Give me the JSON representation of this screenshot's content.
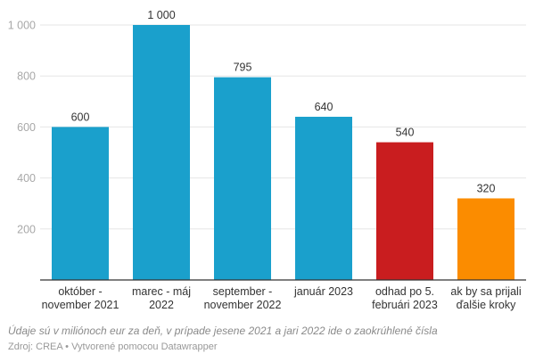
{
  "chart_data": {
    "type": "bar",
    "categories": [
      [
        "október -",
        "november 2021"
      ],
      [
        "marec - máj",
        "2022"
      ],
      [
        "september -",
        "november 2022"
      ],
      [
        "január 2023"
      ],
      [
        "odhad po 5.",
        "februári 2023"
      ],
      [
        "ak by sa prijali",
        "ďalšie kroky"
      ]
    ],
    "values": [
      600,
      1000,
      795,
      640,
      540,
      320
    ],
    "value_labels": [
      "600",
      "1 000",
      "795",
      "640",
      "540",
      "320"
    ],
    "colors": [
      "#1aa0cc",
      "#1aa0cc",
      "#1aa0cc",
      "#1aa0cc",
      "#c91d1f",
      "#fb8c00"
    ],
    "yticks": [
      200,
      400,
      600,
      800,
      1000
    ],
    "ytick_labels": [
      "200",
      "400",
      "600",
      "800",
      "1 000"
    ],
    "ylim": [
      0,
      1000
    ],
    "grid": true,
    "xlabel": "",
    "ylabel": ""
  },
  "footer": {
    "note": "Údaje sú v miliónoch eur za deň, v prípade jesene 2021 a jari 2022 ide o zaokrúhlené čísla",
    "source": "Zdroj: CREA • Vytvorené pomocou Datawrapper"
  }
}
